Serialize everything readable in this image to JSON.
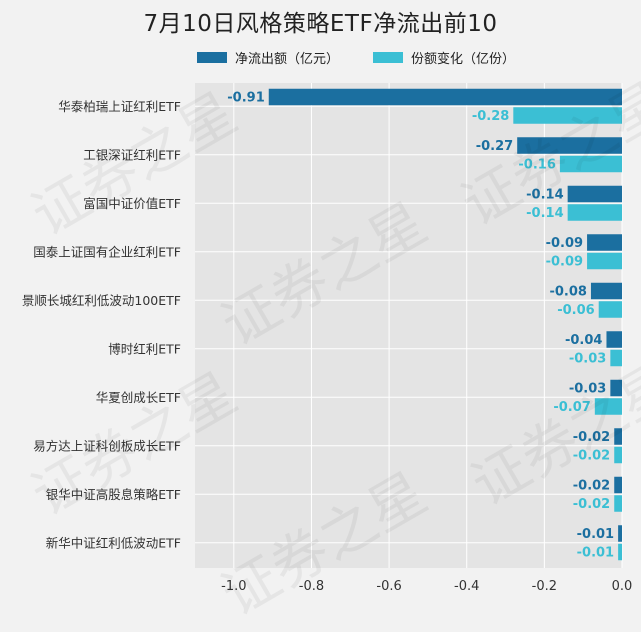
{
  "chart_data": {
    "type": "bar",
    "orientation": "horizontal",
    "title": "7月10日风格策略ETF净流出前10",
    "categories": [
      "华泰柏瑞上证红利ETF",
      "工银深证红利ETF",
      "富国中证价值ETF",
      "国泰上证国有企业红利ETF",
      "景顺长城红利低波动100ETF",
      "博时红利ETF",
      "华夏创成长ETF",
      "易方达上证科创板成长ETF",
      "银华中证高股息策略ETF",
      "新华中证红利低波动ETF"
    ],
    "series": [
      {
        "name": "净流出额（亿元）",
        "color": "#1b6fa0",
        "values": [
          -0.91,
          -0.27,
          -0.14,
          -0.09,
          -0.08,
          -0.04,
          -0.03,
          -0.02,
          -0.02,
          -0.01
        ],
        "labels": [
          "-0.91",
          "-0.27",
          "-0.14",
          "-0.09",
          "-0.08",
          "-0.04",
          "-0.03",
          "-0.02",
          "-0.02",
          "-0.01"
        ]
      },
      {
        "name": "份额变化（亿份）",
        "color": "#3bbfd4",
        "values": [
          -0.28,
          -0.16,
          -0.14,
          -0.09,
          -0.06,
          -0.03,
          -0.07,
          -0.02,
          -0.02,
          -0.01
        ],
        "labels": [
          "-0.28",
          "-0.16",
          "-0.14",
          "-0.09",
          "-0.06",
          "-0.03",
          "-0.07",
          "-0.02",
          "-0.02",
          "-0.01"
        ]
      }
    ],
    "xlim": [
      -1.1,
      0.0
    ],
    "xticks": [
      -1.0,
      -0.8,
      -0.6,
      -0.4,
      -0.2,
      0.0
    ],
    "xtick_labels": [
      "-1.0",
      "-0.8",
      "-0.6",
      "-0.4",
      "-0.2",
      "0.0"
    ],
    "grid": true,
    "legend_position": "top"
  },
  "watermark_text": "证券之星"
}
